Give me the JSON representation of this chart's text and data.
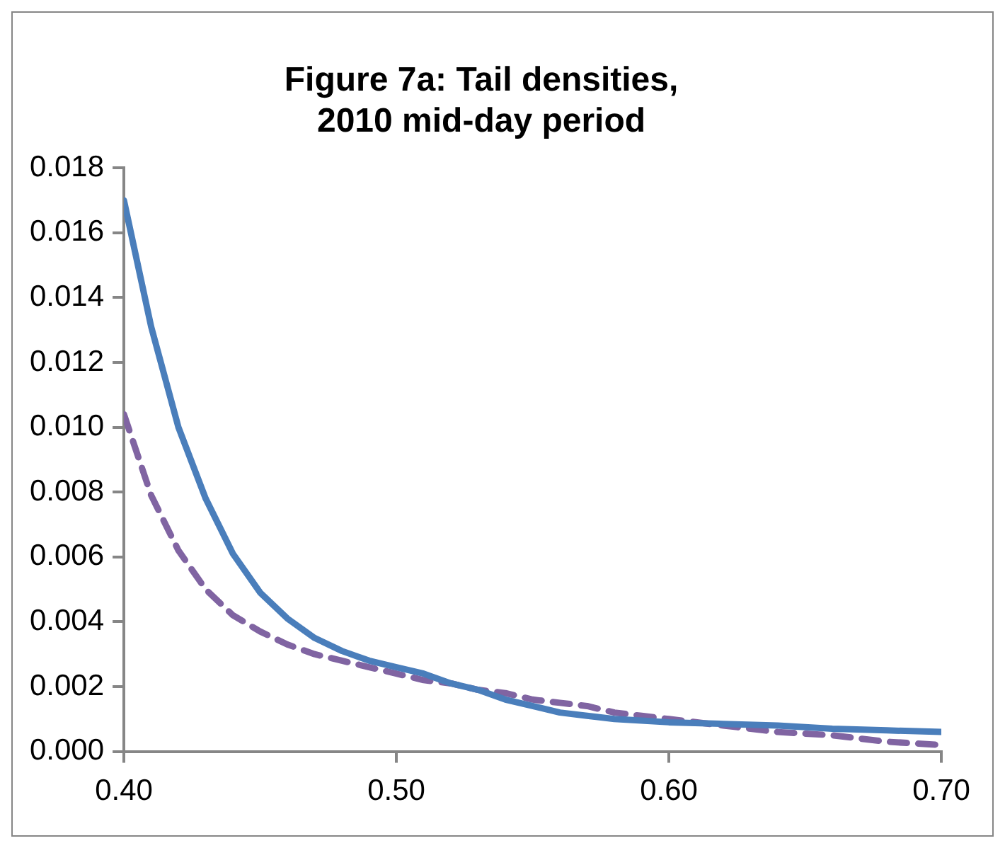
{
  "chart_data": {
    "type": "line",
    "title": "Figure 7a: Tail densities, 2010 mid-day period",
    "xlim": [
      0.4,
      0.7
    ],
    "xticks": [
      {
        "value": 0.4,
        "label": "0.40"
      },
      {
        "value": 0.5,
        "label": "0.50"
      },
      {
        "value": 0.6,
        "label": "0.60"
      },
      {
        "value": 0.7,
        "label": "0.70"
      }
    ],
    "ylim": [
      0,
      0.018
    ],
    "yticks": [
      {
        "value": 0,
        "label": "0.000"
      },
      {
        "value": 0.002,
        "label": "0.002"
      },
      {
        "value": 0.004,
        "label": "0.004"
      },
      {
        "value": 0.006,
        "label": "0.006"
      },
      {
        "value": 0.008,
        "label": "0.008"
      },
      {
        "value": 0.01,
        "label": "0.010"
      },
      {
        "value": 0.012,
        "label": "0.012"
      },
      {
        "value": 0.014,
        "label": "0.014"
      },
      {
        "value": 0.016,
        "label": "0.016"
      },
      {
        "value": 0.018,
        "label": "0.018"
      }
    ],
    "grid": false,
    "legend": false,
    "marker": "none",
    "series": [
      {
        "color": "#4a7ebb",
        "line_style": "solid",
        "x": [
          0.4,
          0.41,
          0.42,
          0.43,
          0.44,
          0.45,
          0.46,
          0.47,
          0.48,
          0.49,
          0.5,
          0.51,
          0.52,
          0.53,
          0.54,
          0.55,
          0.56,
          0.57,
          0.58,
          0.59,
          0.6,
          0.62,
          0.64,
          0.66,
          0.68,
          0.7
        ],
        "values": [
          0.017,
          0.0131,
          0.01,
          0.0078,
          0.0061,
          0.0049,
          0.0041,
          0.0035,
          0.0031,
          0.0028,
          0.0026,
          0.0024,
          0.0021,
          0.0019,
          0.0016,
          0.0014,
          0.0012,
          0.0011,
          0.001,
          0.00095,
          0.0009,
          0.00085,
          0.0008,
          0.0007,
          0.00065,
          0.0006
        ]
      },
      {
        "color": "#8064a2",
        "line_style": "dashed",
        "x": [
          0.4,
          0.41,
          0.42,
          0.43,
          0.44,
          0.45,
          0.46,
          0.47,
          0.48,
          0.49,
          0.5,
          0.51,
          0.52,
          0.53,
          0.54,
          0.55,
          0.56,
          0.57,
          0.58,
          0.59,
          0.6,
          0.62,
          0.64,
          0.66,
          0.68,
          0.7
        ],
        "values": [
          0.0104,
          0.0079,
          0.0062,
          0.005,
          0.0042,
          0.0037,
          0.0033,
          0.003,
          0.0028,
          0.0026,
          0.0024,
          0.0022,
          0.0021,
          0.0019,
          0.0018,
          0.0016,
          0.0015,
          0.0014,
          0.0012,
          0.0011,
          0.001,
          0.0008,
          0.0006,
          0.0005,
          0.0003,
          0.0002
        ]
      }
    ]
  }
}
